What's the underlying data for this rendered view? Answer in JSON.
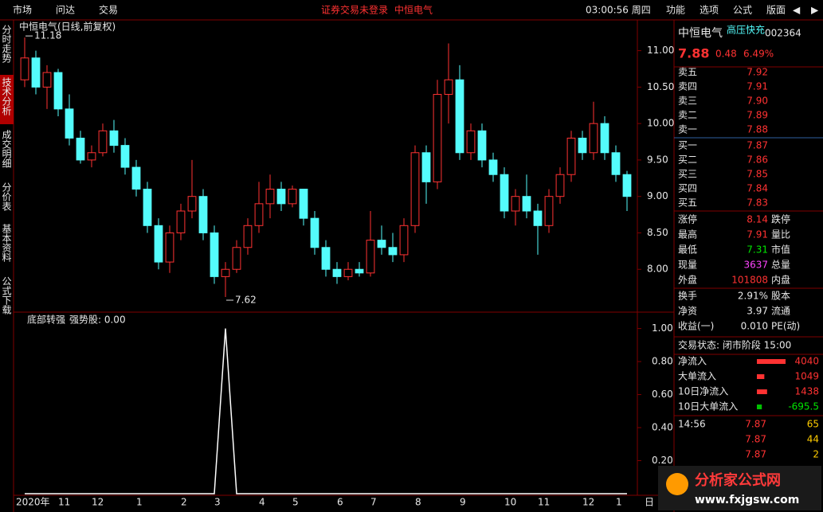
{
  "menu": {
    "left": [
      "市场",
      "问达",
      "交易"
    ],
    "notice": "证券交易未登录",
    "stock": "中恒电气",
    "time": "03:00:56 周四",
    "right": [
      "功能",
      "选项",
      "公式",
      "版面"
    ]
  },
  "side_tabs": [
    "分时走势",
    "技术分析",
    "成交明细",
    "分价表",
    "基本资料",
    "公式下载"
  ],
  "chart_data": [
    {
      "type": "candlestick",
      "title": "中恒电气(日线,前复权)",
      "up_color": "#ff3232",
      "down_color": "#54fcfc",
      "open": [
        10.6,
        10.9,
        10.5,
        10.7,
        10.2,
        9.8,
        9.5,
        9.6,
        9.9,
        9.7,
        9.4,
        9.1,
        8.6,
        8.1,
        8.5,
        8.8,
        9.0,
        8.5,
        7.9,
        8.0,
        8.3,
        8.6,
        8.9,
        9.1,
        8.9,
        9.1,
        8.7,
        8.3,
        8.0,
        7.9,
        8.0,
        7.95,
        8.4,
        8.3,
        8.2,
        8.6,
        9.6,
        9.2,
        10.4,
        10.6,
        9.6,
        9.9,
        9.5,
        9.3,
        8.8,
        9.0,
        8.8,
        8.6,
        9.0,
        9.3,
        9.8,
        9.6,
        10.0,
        9.6,
        9.3
      ],
      "high": [
        11.18,
        11.0,
        10.8,
        10.75,
        10.4,
        9.9,
        9.7,
        10.0,
        10.05,
        9.8,
        9.5,
        9.2,
        8.7,
        8.6,
        8.9,
        9.5,
        9.1,
        8.6,
        8.1,
        8.4,
        8.7,
        9.2,
        9.3,
        9.2,
        9.15,
        9.1,
        8.8,
        8.4,
        8.1,
        8.1,
        8.1,
        8.8,
        8.6,
        8.5,
        8.7,
        9.7,
        9.7,
        10.6,
        11.1,
        10.8,
        10.0,
        10.0,
        9.6,
        9.4,
        9.1,
        9.3,
        8.9,
        9.1,
        9.4,
        9.9,
        9.9,
        10.3,
        10.1,
        9.7,
        9.35
      ],
      "low": [
        10.5,
        10.4,
        10.2,
        10.1,
        9.7,
        9.45,
        9.4,
        9.55,
        9.6,
        9.3,
        9.0,
        8.5,
        8.0,
        7.95,
        8.4,
        8.7,
        8.4,
        7.8,
        7.62,
        7.95,
        8.2,
        8.5,
        8.7,
        8.8,
        8.85,
        8.6,
        8.2,
        7.9,
        7.8,
        7.85,
        7.9,
        7.9,
        8.2,
        8.1,
        8.1,
        8.5,
        8.9,
        9.1,
        10.0,
        9.5,
        9.5,
        9.4,
        9.2,
        8.7,
        8.6,
        8.7,
        8.2,
        8.5,
        8.9,
        9.2,
        9.5,
        9.5,
        9.5,
        9.2,
        8.8
      ],
      "close": [
        10.9,
        10.5,
        10.7,
        10.2,
        9.8,
        9.5,
        9.6,
        9.9,
        9.7,
        9.4,
        9.1,
        8.6,
        8.1,
        8.5,
        8.8,
        9.0,
        8.5,
        7.9,
        8.0,
        8.3,
        8.6,
        8.9,
        9.1,
        8.9,
        9.1,
        8.7,
        8.3,
        8.0,
        7.9,
        8.0,
        7.95,
        8.4,
        8.3,
        8.2,
        8.6,
        9.6,
        9.2,
        10.4,
        10.6,
        9.6,
        9.9,
        9.5,
        9.3,
        8.8,
        9.0,
        8.8,
        8.6,
        9.0,
        9.3,
        9.8,
        9.6,
        10.0,
        9.6,
        9.3,
        9.0
      ],
      "max_label": "11.18",
      "min_label": "7.62",
      "ylim": [
        7.5,
        11.4
      ],
      "yticks": [
        {
          "value": 8,
          "label": "8.00"
        },
        {
          "value": 8.5,
          "label": "8.50"
        },
        {
          "value": 9,
          "label": "9.00"
        },
        {
          "value": 9.5,
          "label": "9.50"
        },
        {
          "value": 10,
          "label": "10.00"
        },
        {
          "value": 10.5,
          "label": "10.50"
        },
        {
          "value": 11,
          "label": "11.00"
        }
      ]
    },
    {
      "type": "line",
      "title": "底部转强",
      "series_label": "强势股: 0.00",
      "color": "#ffffff",
      "period": "日",
      "categories": [
        "2020年",
        null,
        null,
        "11",
        null,
        null,
        "12",
        null,
        null,
        null,
        "1",
        null,
        null,
        null,
        "2",
        null,
        null,
        "3",
        null,
        null,
        null,
        "4",
        null,
        null,
        "5",
        null,
        null,
        null,
        "6",
        null,
        null,
        "7",
        null,
        null,
        null,
        "8",
        null,
        null,
        null,
        "9",
        null,
        null,
        null,
        "10",
        null,
        null,
        "11",
        null,
        null,
        null,
        "12",
        null,
        null,
        "1",
        null
      ],
      "values": [
        0,
        0,
        0,
        0,
        0,
        0,
        0,
        0,
        0,
        0,
        0,
        0,
        0,
        0,
        0,
        0,
        0,
        0,
        1,
        0,
        0,
        0,
        0,
        0,
        0,
        0,
        0,
        0,
        0,
        0,
        0,
        0,
        0,
        0,
        0,
        0,
        0,
        0,
        0,
        0,
        0,
        0,
        0,
        0,
        0,
        0,
        0,
        0,
        0,
        0,
        0,
        0,
        0,
        0,
        0
      ],
      "ylim": [
        0,
        1.08
      ],
      "yticks": [
        {
          "value": 0.2,
          "label": "0.20"
        },
        {
          "value": 0.4,
          "label": "0.40"
        },
        {
          "value": 0.6,
          "label": "0.60"
        },
        {
          "value": 0.8,
          "label": "0.80"
        },
        {
          "value": 1,
          "label": "1.00"
        }
      ]
    }
  ],
  "quote": {
    "name": "中恒电气",
    "concept": "高压快充",
    "code": "002364",
    "price": "7.88",
    "change": "0.48",
    "pct": "6.49%",
    "sell": [
      [
        "卖五",
        "7.92"
      ],
      [
        "卖四",
        "7.91"
      ],
      [
        "卖三",
        "7.90"
      ],
      [
        "卖二",
        "7.89"
      ],
      [
        "卖一",
        "7.88"
      ]
    ],
    "buy": [
      [
        "买一",
        "7.87"
      ],
      [
        "买二",
        "7.86"
      ],
      [
        "买三",
        "7.85"
      ],
      [
        "买四",
        "7.84"
      ],
      [
        "买五",
        "7.83"
      ]
    ],
    "stats": [
      [
        "涨停",
        "8.14",
        "跌停"
      ],
      [
        "最高",
        "7.91",
        "量比"
      ],
      [
        "最低",
        "7.31",
        "市值"
      ],
      [
        "现量",
        "3637",
        "总量"
      ],
      [
        "外盘",
        "101808",
        "内盘"
      ]
    ],
    "stats2": [
      [
        "换手",
        "2.91%",
        "股本"
      ],
      [
        "净资",
        "3.97",
        "流通"
      ],
      [
        "收益(一)",
        "0.010",
        "PE(动)"
      ]
    ],
    "status": "交易状态: 闭市阶段 15:00",
    "flows": [
      [
        "净流入",
        4040
      ],
      [
        "大单流入",
        1049
      ],
      [
        "10日净流入",
        1438
      ],
      [
        "10日大单流入",
        -695.5
      ]
    ],
    "ticks": [
      [
        "14:56",
        "7.87",
        "65"
      ],
      [
        null,
        "7.87",
        "44"
      ],
      [
        null,
        "7.87",
        "2"
      ]
    ]
  },
  "logo": {
    "name": "分析家公式网",
    "url": "www.fxjgsw.com"
  }
}
